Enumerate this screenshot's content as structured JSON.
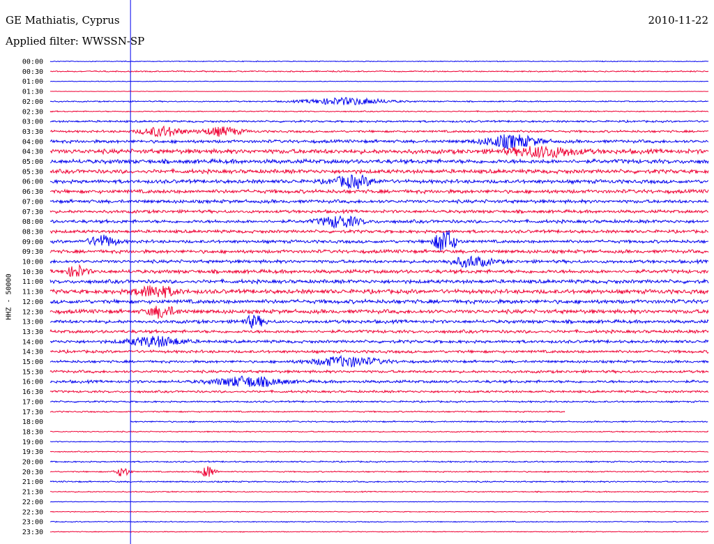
{
  "header": {
    "station": "GE Mathiatis, Cyprus",
    "filter": "Applied filter: WWSSN-SP",
    "date": "2010-11-22"
  },
  "chart_data": {
    "type": "line",
    "title": "GE Mathiatis, Cyprus",
    "subtitle": "Applied filter: WWSSN-SP",
    "ylabel": "HHZ - 50000",
    "xlabel": "",
    "colors": {
      "even_rows": "#0000ee",
      "odd_rows": "#ee0033",
      "cursor": "#0000ee"
    },
    "rows": [
      "00:00",
      "00:30",
      "01:00",
      "01:30",
      "02:00",
      "02:30",
      "03:00",
      "03:30",
      "04:00",
      "04:30",
      "05:00",
      "05:30",
      "06:00",
      "06:30",
      "07:00",
      "07:30",
      "08:00",
      "08:30",
      "09:00",
      "09:30",
      "10:00",
      "10:30",
      "11:00",
      "11:30",
      "12:00",
      "12:30",
      "13:00",
      "13:30",
      "14:00",
      "14:30",
      "15:00",
      "15:30",
      "16:00",
      "16:30",
      "17:00",
      "17:30",
      "18:00",
      "18:30",
      "19:00",
      "19:30",
      "20:00",
      "20:30",
      "21:00",
      "21:30",
      "22:00",
      "22:30",
      "23:00",
      "23:30"
    ],
    "noise_level": [
      0.6,
      0.9,
      0.5,
      0.3,
      0.9,
      0.8,
      1.4,
      1.6,
      2.2,
      3.2,
      3.0,
      2.8,
      2.6,
      2.6,
      2.4,
      2.2,
      2.3,
      2.2,
      2.2,
      2.4,
      2.3,
      2.6,
      2.6,
      3.0,
      2.8,
      2.8,
      2.4,
      2.2,
      2.1,
      2.0,
      1.8,
      1.9,
      2.0,
      1.6,
      1.2,
      1.0,
      1.0,
      0.8,
      0.7,
      0.7,
      1.0,
      0.9,
      1.0,
      0.8,
      0.5,
      0.6,
      0.7,
      0.6
    ],
    "events": [
      {
        "row": "02:00",
        "x": 0.45,
        "amp": 5,
        "width": 0.06
      },
      {
        "row": "03:30",
        "x": 0.17,
        "amp": 7,
        "width": 0.03
      },
      {
        "row": "03:30",
        "x": 0.26,
        "amp": 6,
        "width": 0.03
      },
      {
        "row": "04:00",
        "x": 0.7,
        "amp": 9,
        "width": 0.04
      },
      {
        "row": "04:30",
        "x": 0.75,
        "amp": 7,
        "width": 0.05
      },
      {
        "row": "06:00",
        "x": 0.46,
        "amp": 8,
        "width": 0.03
      },
      {
        "row": "08:00",
        "x": 0.44,
        "amp": 8,
        "width": 0.03
      },
      {
        "row": "09:00",
        "x": 0.6,
        "amp": 18,
        "width": 0.015
      },
      {
        "row": "09:00",
        "x": 0.08,
        "amp": 8,
        "width": 0.02
      },
      {
        "row": "10:00",
        "x": 0.64,
        "amp": 7,
        "width": 0.03
      },
      {
        "row": "10:30",
        "x": 0.04,
        "amp": 8,
        "width": 0.015
      },
      {
        "row": "11:30",
        "x": 0.16,
        "amp": 8,
        "width": 0.03
      },
      {
        "row": "12:30",
        "x": 0.17,
        "amp": 8,
        "width": 0.02
      },
      {
        "row": "13:00",
        "x": 0.31,
        "amp": 8,
        "width": 0.015
      },
      {
        "row": "14:00",
        "x": 0.16,
        "amp": 7,
        "width": 0.04
      },
      {
        "row": "15:00",
        "x": 0.45,
        "amp": 7,
        "width": 0.05
      },
      {
        "row": "16:00",
        "x": 0.3,
        "amp": 7,
        "width": 0.05
      },
      {
        "row": "20:30",
        "x": 0.24,
        "amp": 9,
        "width": 0.01
      },
      {
        "row": "20:30",
        "x": 0.11,
        "amp": 7,
        "width": 0.01
      }
    ],
    "gaps": [
      {
        "row": "17:30",
        "from": 0.782,
        "to": 1.0
      },
      {
        "row": "18:00",
        "from": 0.0,
        "to": 0.122
      }
    ],
    "cursor_x_fraction": 0.122,
    "grid": false,
    "legend": "none"
  }
}
